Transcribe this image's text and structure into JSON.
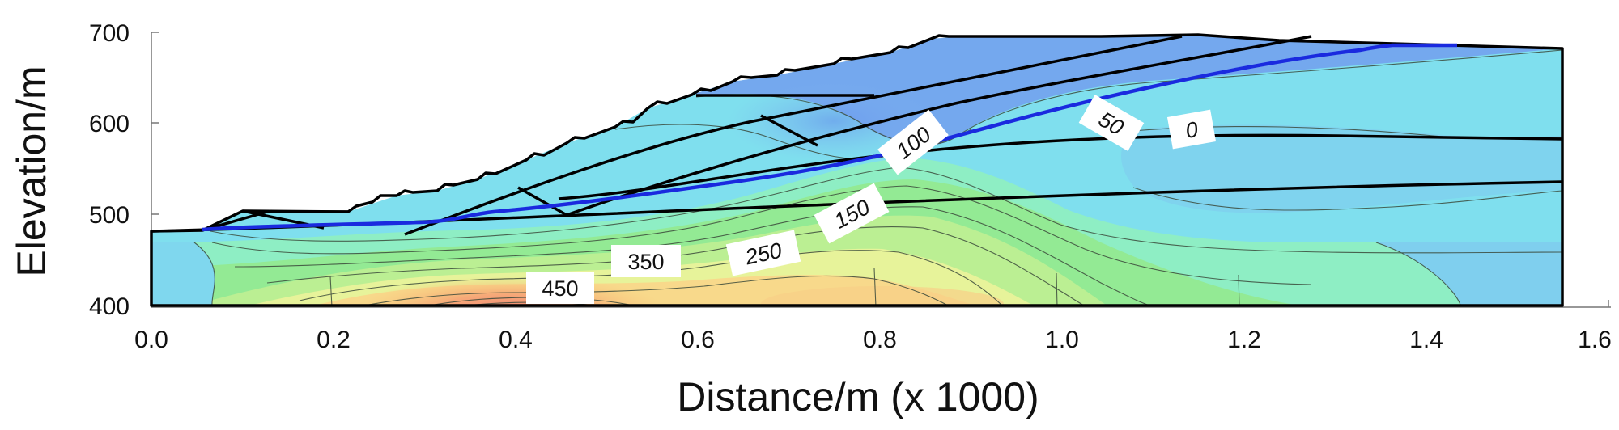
{
  "chart_data": {
    "type": "contour",
    "xlabel": "Distance/m (x  1000)",
    "ylabel": "Elevation/m",
    "xlim": [
      0.0,
      1.6
    ],
    "ylim": [
      400,
      700
    ],
    "x_ticks": [
      "0.0",
      "0.2",
      "0.4",
      "0.6",
      "0.8",
      "1.0",
      "1.2",
      "1.4",
      "1.6"
    ],
    "y_ticks": [
      "700",
      "600",
      "500",
      "400"
    ],
    "contour_labels": [
      "0",
      "50",
      "100",
      "150",
      "250",
      "350",
      "450"
    ],
    "colors": {
      "low": "#6fa0ee",
      "cyan": "#7fe0ee",
      "green": "#8fe88a",
      "yellow": "#f0f29a",
      "orange": "#f8c77a",
      "high": "#f08a74",
      "phreatic_line": "#1a2adf",
      "boundary": "#000000"
    }
  }
}
